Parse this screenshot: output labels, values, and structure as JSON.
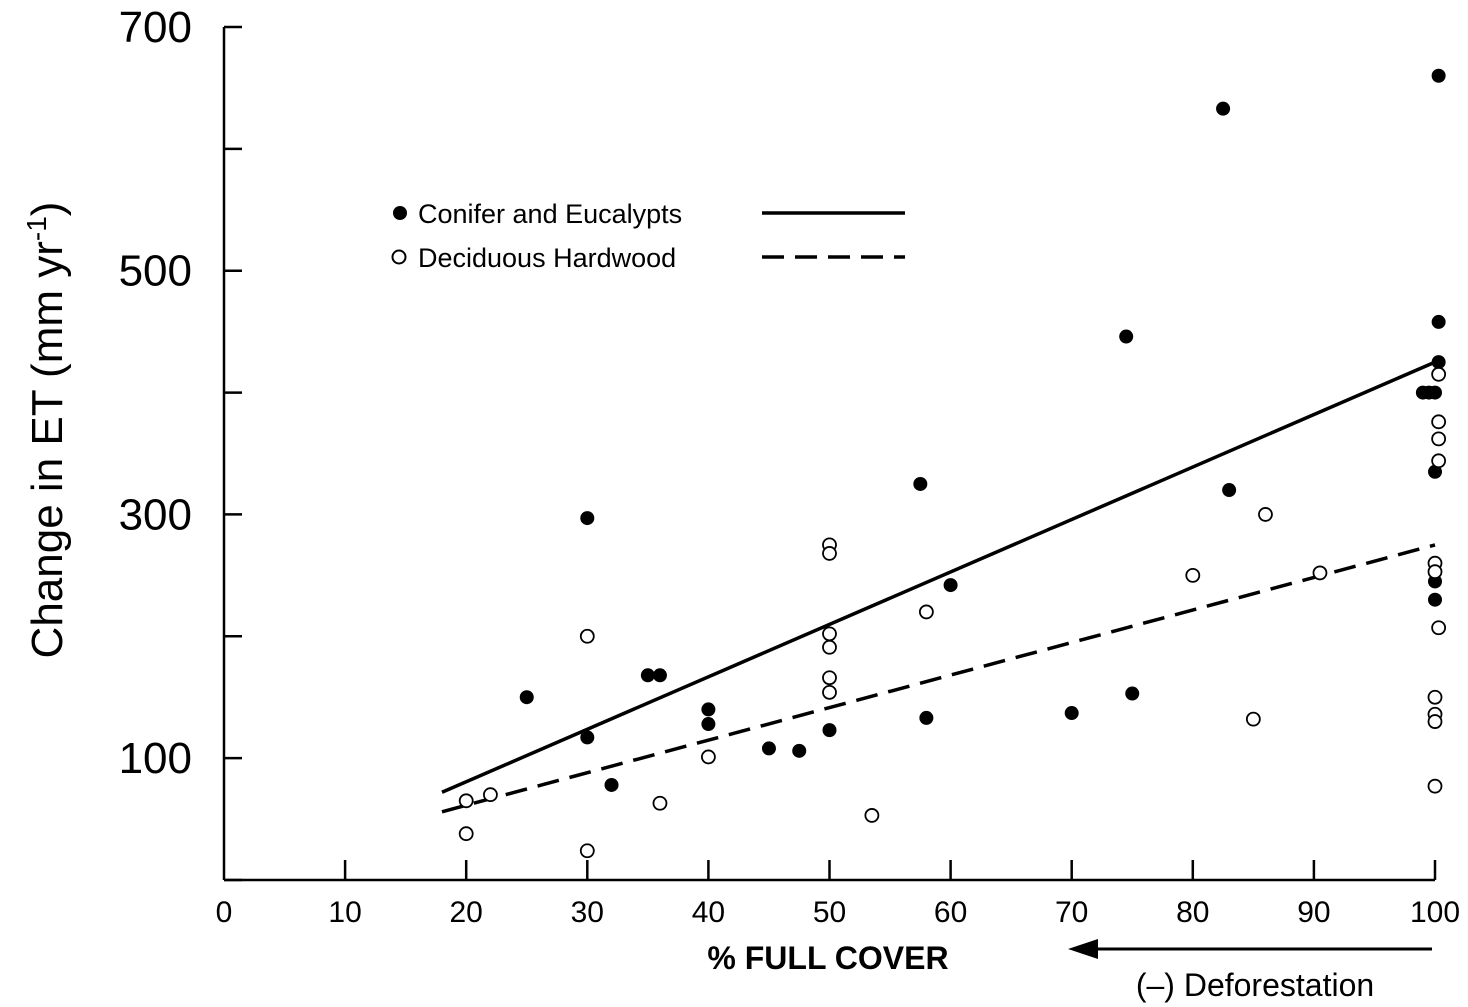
{
  "chart_data": {
    "type": "scatter",
    "title": "",
    "xlabel": "% FULL COVER",
    "ylabel": "Change in ET (mm yr -1)",
    "ylabel_main": "Change in ET (mm yr",
    "ylabel_sup": "-1",
    "ylabel_close": ")",
    "xlim": [
      0,
      100
    ],
    "ylim": [
      0,
      700
    ],
    "x_ticks": [
      0,
      10,
      20,
      30,
      40,
      50,
      60,
      70,
      80,
      90,
      100
    ],
    "x_tick_labels": [
      "0",
      "10",
      "20",
      "30",
      "40",
      "50",
      "60",
      "70",
      "80",
      "90",
      "100"
    ],
    "y_ticks": [
      0,
      100,
      200,
      300,
      400,
      500,
      600,
      700
    ],
    "y_tick_labels": [
      "",
      "100",
      "",
      "300",
      "",
      "500",
      "",
      "700"
    ],
    "grid": false,
    "legend_position": "upper-left",
    "annotation": "(–) Deforestation",
    "series": [
      {
        "name": "Conifer and Eucalypts",
        "marker": "filled-circle",
        "line_style": "solid",
        "fit_line": [
          [
            18,
            72
          ],
          [
            100,
            425
          ]
        ],
        "points": [
          [
            25,
            150
          ],
          [
            30,
            297
          ],
          [
            30,
            117
          ],
          [
            32,
            78
          ],
          [
            35,
            168
          ],
          [
            36,
            168
          ],
          [
            40,
            140
          ],
          [
            40,
            128
          ],
          [
            45,
            108
          ],
          [
            47.5,
            106
          ],
          [
            50,
            123
          ],
          [
            57.5,
            325
          ],
          [
            58,
            133
          ],
          [
            60,
            242
          ],
          [
            70,
            137
          ],
          [
            74.5,
            446
          ],
          [
            75,
            153
          ],
          [
            82.5,
            633
          ],
          [
            83,
            320
          ],
          [
            99,
            400
          ],
          [
            99.5,
            400
          ],
          [
            100,
            400
          ],
          [
            100,
            335
          ],
          [
            100,
            245
          ],
          [
            100,
            230
          ],
          [
            100.3,
            660
          ],
          [
            100.3,
            458
          ],
          [
            100.3,
            425
          ]
        ]
      },
      {
        "name": "Deciduous Hardwood",
        "marker": "open-circle",
        "line_style": "dashed",
        "fit_line": [
          [
            18,
            56
          ],
          [
            100,
            275
          ]
        ],
        "points": [
          [
            20,
            65
          ],
          [
            20,
            38
          ],
          [
            22,
            70
          ],
          [
            30,
            200
          ],
          [
            30,
            24
          ],
          [
            36,
            63
          ],
          [
            40,
            101
          ],
          [
            50,
            275
          ],
          [
            50,
            268
          ],
          [
            50,
            202
          ],
          [
            50,
            191
          ],
          [
            50,
            166
          ],
          [
            50,
            154
          ],
          [
            53.5,
            53
          ],
          [
            58,
            220
          ],
          [
            80,
            250
          ],
          [
            85,
            132
          ],
          [
            86,
            300
          ],
          [
            90.5,
            252
          ],
          [
            100,
            260
          ],
          [
            100,
            253
          ],
          [
            100.3,
            415
          ],
          [
            100.3,
            376
          ],
          [
            100.3,
            362
          ],
          [
            100.3,
            344
          ],
          [
            100.3,
            207
          ],
          [
            100,
            150
          ],
          [
            100,
            136
          ],
          [
            100,
            130
          ],
          [
            100,
            77
          ]
        ]
      }
    ]
  },
  "legend": {
    "items": [
      {
        "label": "Conifer and Eucalypts"
      },
      {
        "label": "Deciduous Hardwood"
      }
    ]
  }
}
